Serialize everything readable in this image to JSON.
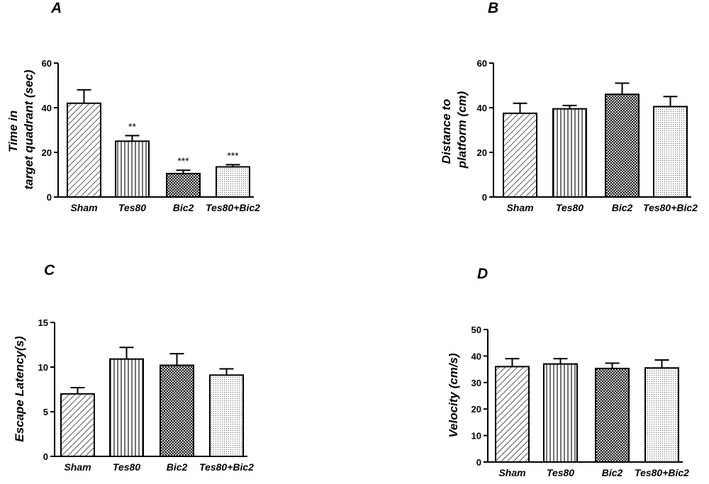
{
  "chart_data": [
    {
      "panel": "A",
      "type": "bar",
      "ylabel_lines": [
        "Time in",
        "target quadrant (sec)"
      ],
      "categories": [
        "Sham",
        "Tes80",
        "Bic2",
        "Tes80+Bic2"
      ],
      "values": [
        42,
        25,
        10.5,
        13.5
      ],
      "errors": [
        6,
        2.5,
        1.5,
        1
      ],
      "annotations": [
        "",
        "**",
        "***",
        "***"
      ],
      "ylim": [
        0,
        60
      ],
      "yticks": [
        "0",
        "20",
        "40",
        "60"
      ]
    },
    {
      "panel": "B",
      "type": "bar",
      "ylabel_lines": [
        "Distance to",
        "platform (cm)"
      ],
      "categories": [
        "Sham",
        "Tes80",
        "Bic2",
        "Tes80+Bic2"
      ],
      "values": [
        37.5,
        39.5,
        46,
        40.5
      ],
      "errors": [
        4.5,
        1.5,
        5,
        4.5
      ],
      "annotations": [
        "",
        "",
        "",
        ""
      ],
      "ylim": [
        0,
        60
      ],
      "yticks": [
        "0",
        "20",
        "40",
        "60"
      ]
    },
    {
      "panel": "C",
      "type": "bar",
      "ylabel_lines": [
        "Escape Latency(s)"
      ],
      "categories": [
        "Sham",
        "Tes80",
        "Bic2",
        "Tes80+Bic2"
      ],
      "values": [
        7,
        10.9,
        10.2,
        9.1
      ],
      "errors": [
        0.7,
        1.3,
        1.3,
        0.7
      ],
      "annotations": [
        "",
        "",
        "",
        ""
      ],
      "ylim": [
        0,
        15
      ],
      "yticks": [
        "0",
        "5",
        "10",
        "15"
      ]
    },
    {
      "panel": "D",
      "type": "bar",
      "ylabel_lines": [
        "Velocity (cm/s)"
      ],
      "categories": [
        "Sham",
        "Tes80",
        "Bic2",
        "Tes80+Bic2"
      ],
      "values": [
        36,
        37,
        35.3,
        35.5
      ],
      "errors": [
        3,
        2,
        2,
        3
      ],
      "annotations": [
        "",
        "",
        "",
        ""
      ],
      "ylim": [
        0,
        50
      ],
      "yticks": [
        "0",
        "10",
        "20",
        "30",
        "40",
        "50"
      ]
    }
  ]
}
